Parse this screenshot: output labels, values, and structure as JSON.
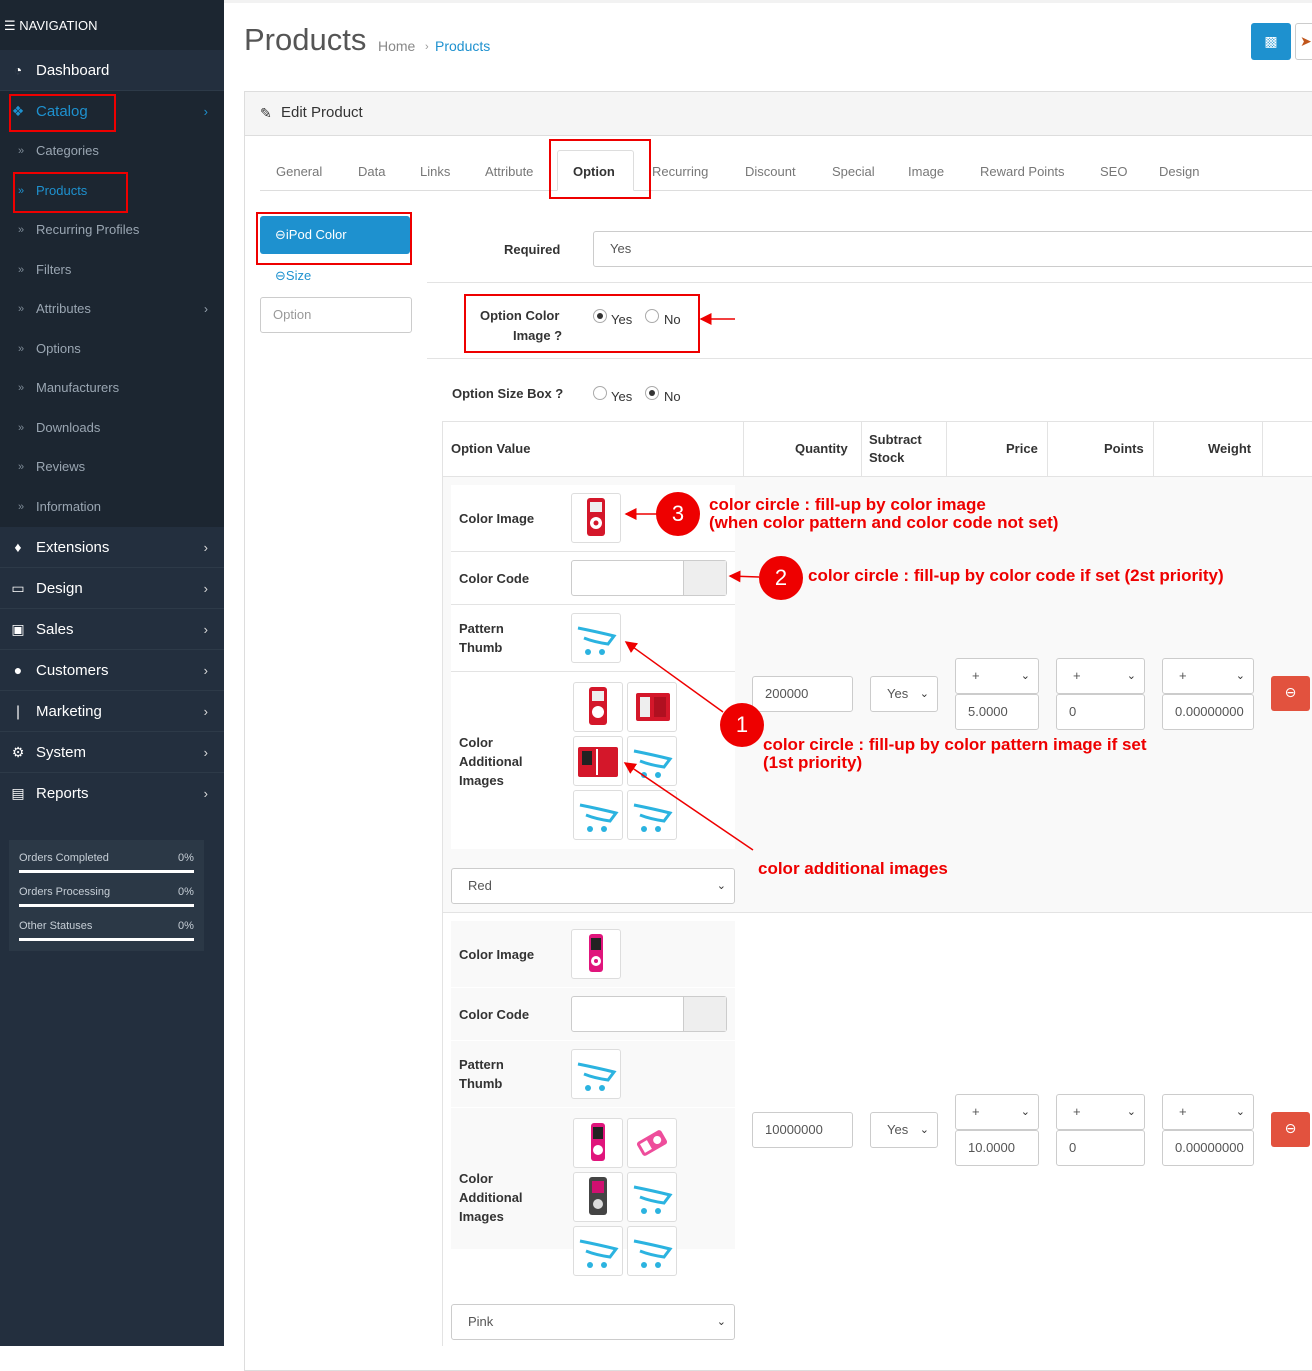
{
  "sidebar": {
    "nav_title": "NAVIGATION",
    "items": [
      {
        "label": "Dashboard",
        "icon": "dashboard-icon"
      },
      {
        "label": "Catalog",
        "icon": "tags-icon"
      },
      {
        "label": "Extensions",
        "icon": "puzzle-icon"
      },
      {
        "label": "Design",
        "icon": "desktop-icon"
      },
      {
        "label": "Sales",
        "icon": "cart-icon"
      },
      {
        "label": "Customers",
        "icon": "user-icon"
      },
      {
        "label": "Marketing",
        "icon": "share-icon"
      },
      {
        "label": "System",
        "icon": "gear-icon"
      },
      {
        "label": "Reports",
        "icon": "bar-chart-icon"
      }
    ],
    "catalog_sub": [
      "Categories",
      "Products",
      "Recurring Profiles",
      "Filters",
      "Attributes",
      "Options",
      "Manufacturers",
      "Downloads",
      "Reviews",
      "Information"
    ],
    "stats": [
      {
        "label": "Orders Completed",
        "percent": "0%"
      },
      {
        "label": "Orders Processing",
        "percent": "0%"
      },
      {
        "label": "Other Statuses",
        "percent": "0%"
      }
    ]
  },
  "header": {
    "title": "Products",
    "breadcrumb": [
      "Home",
      "Products"
    ]
  },
  "panel": {
    "title": "Edit Product",
    "tabs": [
      "General",
      "Data",
      "Links",
      "Attribute",
      "Option",
      "Recurring",
      "Discount",
      "Special",
      "Image",
      "Reward Points",
      "SEO",
      "Design"
    ],
    "active_tab": "Option"
  },
  "option_list": {
    "items": [
      "iPod Color",
      "Size"
    ],
    "input_placeholder": "Option"
  },
  "form": {
    "required_label": "Required",
    "required_value": "Yes",
    "color_image_label_1": "Option Color",
    "color_image_label_2": "Image ?",
    "size_box_label": "Option Size Box ?",
    "yes": "Yes",
    "no": "No"
  },
  "table": {
    "headers": [
      "Option Value",
      "Quantity",
      "Subtract",
      "Stock",
      "Price",
      "Points",
      "Weight"
    ],
    "row_labels": {
      "color_image": "Color Image",
      "color_code": "Color Code",
      "pattern_1": "Pattern",
      "pattern_2": "Thumb",
      "additional_1": "Color",
      "additional_2": "Additional",
      "additional_3": "Images"
    },
    "rows": [
      {
        "value": "Red",
        "quantity": "200000",
        "subtract": "Yes",
        "price_prefix": "+",
        "price": "5.0000",
        "points_prefix": "+",
        "points": "0",
        "weight_prefix": "+",
        "weight": "0.00000000"
      },
      {
        "value": "Pink",
        "quantity": "10000000",
        "subtract": "Yes",
        "price_prefix": "+",
        "price": "10.0000",
        "points_prefix": "+",
        "points": "0",
        "weight_prefix": "+",
        "weight": "0.00000000"
      }
    ]
  },
  "annotations": {
    "n1": "1",
    "n2": "2",
    "n3": "3",
    "a3_line1": "color circle : fill-up by color image",
    "a3_line2": "(when color pattern and color code not set)",
    "a2": "color circle : fill-up by color code if set (2st priority)",
    "a1_line1": "color circle : fill-up by color pattern image if set",
    "a1_line2": "(1st priority)",
    "a4": "color additional images"
  },
  "colors": {
    "sidebar": "#232f3e",
    "sidebar_sub": "#1c2631",
    "accent": "#1e91cf",
    "danger": "#e2523e",
    "annotation": "#ee0000"
  }
}
